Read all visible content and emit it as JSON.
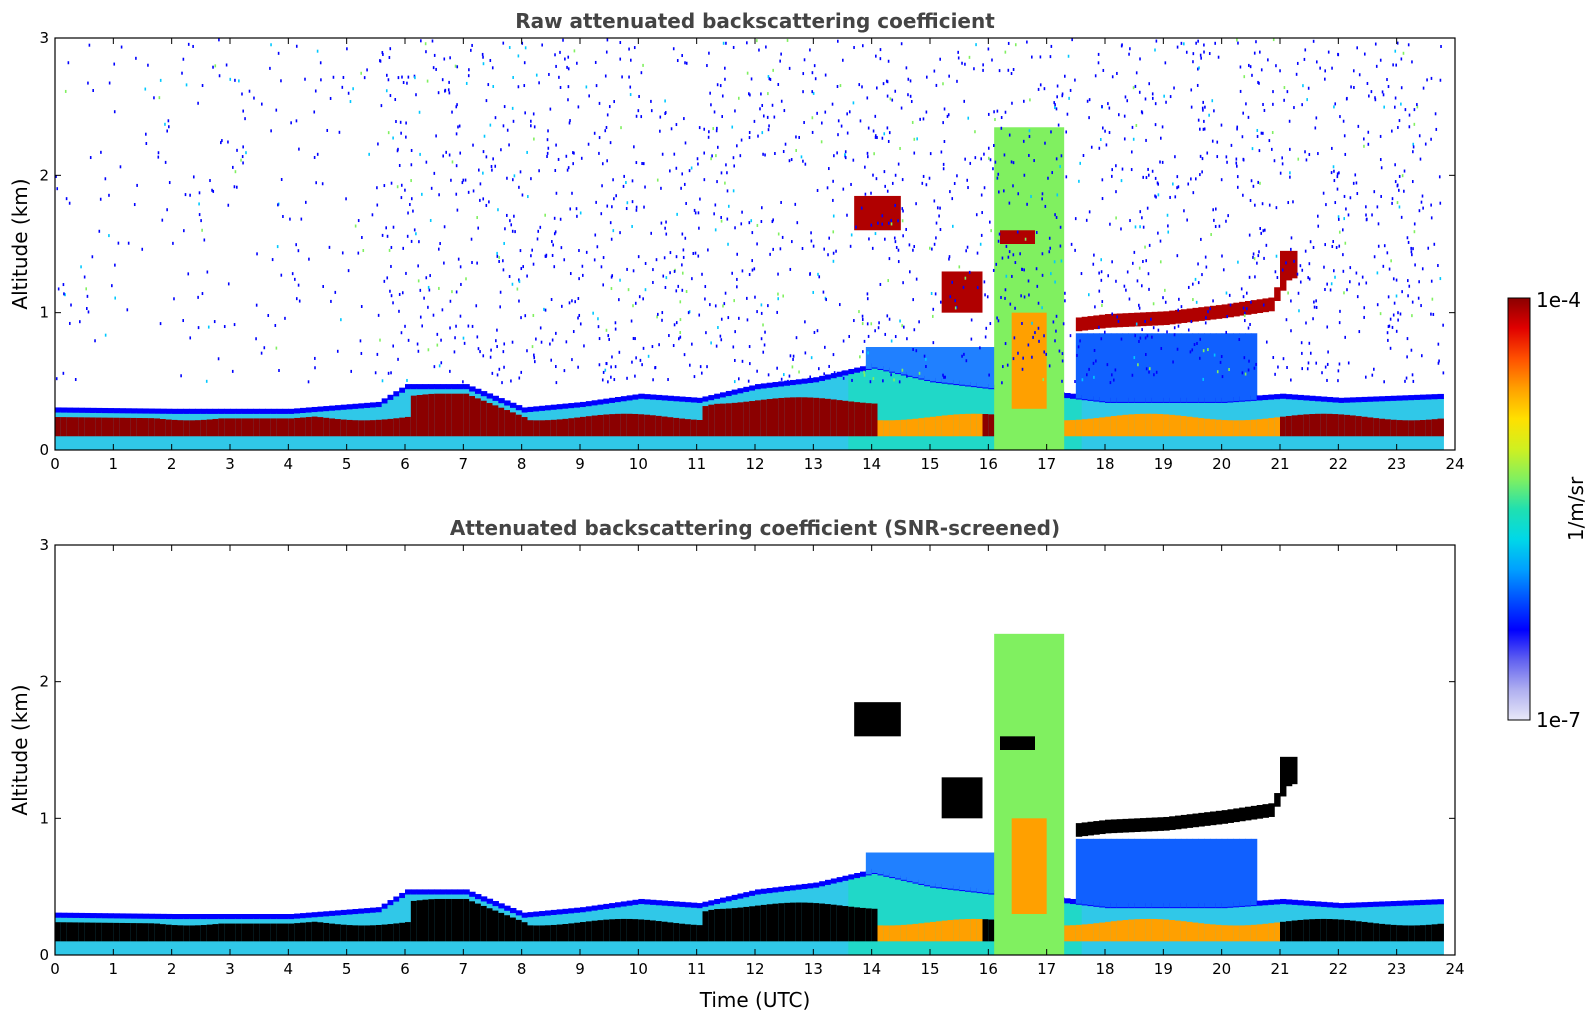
{
  "chart_data": [
    {
      "type": "heatmap",
      "title": "Raw attenuated backscattering coefficient",
      "xlabel": "",
      "ylabel": "Altitude (km)",
      "xlim": [
        0,
        24
      ],
      "ylim": [
        0,
        3
      ],
      "xticks": [
        "0",
        "1",
        "2",
        "3",
        "4",
        "5",
        "6",
        "7",
        "8",
        "9",
        "10",
        "11",
        "12",
        "13",
        "14",
        "15",
        "16",
        "17",
        "18",
        "19",
        "20",
        "21",
        "22",
        "23",
        "24"
      ],
      "yticks": [
        "0",
        "1",
        "2",
        "3"
      ],
      "features": {
        "boundary_layer_top": [
          {
            "time": 0,
            "alt": 0.28
          },
          {
            "time": 2,
            "alt": 0.27
          },
          {
            "time": 4,
            "alt": 0.27
          },
          {
            "time": 5.5,
            "alt": 0.32
          },
          {
            "time": 6,
            "alt": 0.45
          },
          {
            "time": 7,
            "alt": 0.45
          },
          {
            "time": 8,
            "alt": 0.28
          },
          {
            "time": 9,
            "alt": 0.32
          },
          {
            "time": 10,
            "alt": 0.38
          },
          {
            "time": 11,
            "alt": 0.35
          },
          {
            "time": 12,
            "alt": 0.45
          },
          {
            "time": 13,
            "alt": 0.5
          },
          {
            "time": 14,
            "alt": 0.6
          },
          {
            "time": 15,
            "alt": 0.5
          },
          {
            "time": 16,
            "alt": 0.45
          },
          {
            "time": 17,
            "alt": 0.4
          },
          {
            "time": 18,
            "alt": 0.35
          },
          {
            "time": 20,
            "alt": 0.35
          },
          {
            "time": 21,
            "alt": 0.38
          },
          {
            "time": 22,
            "alt": 0.35
          },
          {
            "time": 23.8,
            "alt": 0.38
          }
        ],
        "cloud_layer": [
          {
            "time": 17.4,
            "alt": 0.9
          },
          {
            "time": 18,
            "alt": 0.93
          },
          {
            "time": 19,
            "alt": 0.95
          },
          {
            "time": 20,
            "alt": 1.0
          },
          {
            "time": 20.8,
            "alt": 1.05
          },
          {
            "time": 21.2,
            "alt": 1.35
          }
        ],
        "noise_above_boundary_layer": true
      }
    },
    {
      "type": "heatmap",
      "title": "Attenuated backscattering coefficient (SNR-screened)",
      "xlabel": "Time (UTC)",
      "ylabel": "Altitude (km)",
      "xlim": [
        0,
        24
      ],
      "ylim": [
        0,
        3
      ],
      "xticks": [
        "0",
        "1",
        "2",
        "3",
        "4",
        "5",
        "6",
        "7",
        "8",
        "9",
        "10",
        "11",
        "12",
        "13",
        "14",
        "15",
        "16",
        "17",
        "18",
        "19",
        "20",
        "21",
        "22",
        "23",
        "24"
      ],
      "yticks": [
        "0",
        "1",
        "2",
        "3"
      ],
      "features": {
        "boundary_layer_top": [
          {
            "time": 0,
            "alt": 0.28
          },
          {
            "time": 2,
            "alt": 0.27
          },
          {
            "time": 4,
            "alt": 0.27
          },
          {
            "time": 5.5,
            "alt": 0.32
          },
          {
            "time": 6,
            "alt": 0.45
          },
          {
            "time": 7,
            "alt": 0.45
          },
          {
            "time": 8,
            "alt": 0.28
          },
          {
            "time": 9,
            "alt": 0.32
          },
          {
            "time": 10,
            "alt": 0.38
          },
          {
            "time": 11,
            "alt": 0.35
          },
          {
            "time": 12,
            "alt": 0.45
          },
          {
            "time": 13,
            "alt": 0.5
          },
          {
            "time": 14,
            "alt": 0.6
          },
          {
            "time": 15,
            "alt": 0.5
          },
          {
            "time": 16,
            "alt": 0.45
          },
          {
            "time": 17,
            "alt": 0.4
          },
          {
            "time": 18,
            "alt": 0.35
          },
          {
            "time": 20,
            "alt": 0.35
          },
          {
            "time": 21,
            "alt": 0.38
          },
          {
            "time": 22,
            "alt": 0.35
          },
          {
            "time": 23.8,
            "alt": 0.38
          }
        ],
        "cloud_layer": [
          {
            "time": 17.4,
            "alt": 0.9
          },
          {
            "time": 18,
            "alt": 0.93
          },
          {
            "time": 19,
            "alt": 0.95
          },
          {
            "time": 20,
            "alt": 1.0
          },
          {
            "time": 20.8,
            "alt": 1.05
          },
          {
            "time": 21.2,
            "alt": 1.35
          }
        ],
        "noise_above_boundary_layer": false
      }
    }
  ],
  "colorbar": {
    "max_label": "1e-4",
    "min_label": "1e-7",
    "unit_label": "1/m/sr",
    "colors": [
      "#e8e8f8",
      "#b0b0f0",
      "#6060f0",
      "#0000ff",
      "#0050ff",
      "#00a0ff",
      "#00d8e8",
      "#20e0b0",
      "#80f060",
      "#d0f020",
      "#ffe000",
      "#ffa000",
      "#ff5000",
      "#e00000",
      "#8b0000"
    ]
  }
}
